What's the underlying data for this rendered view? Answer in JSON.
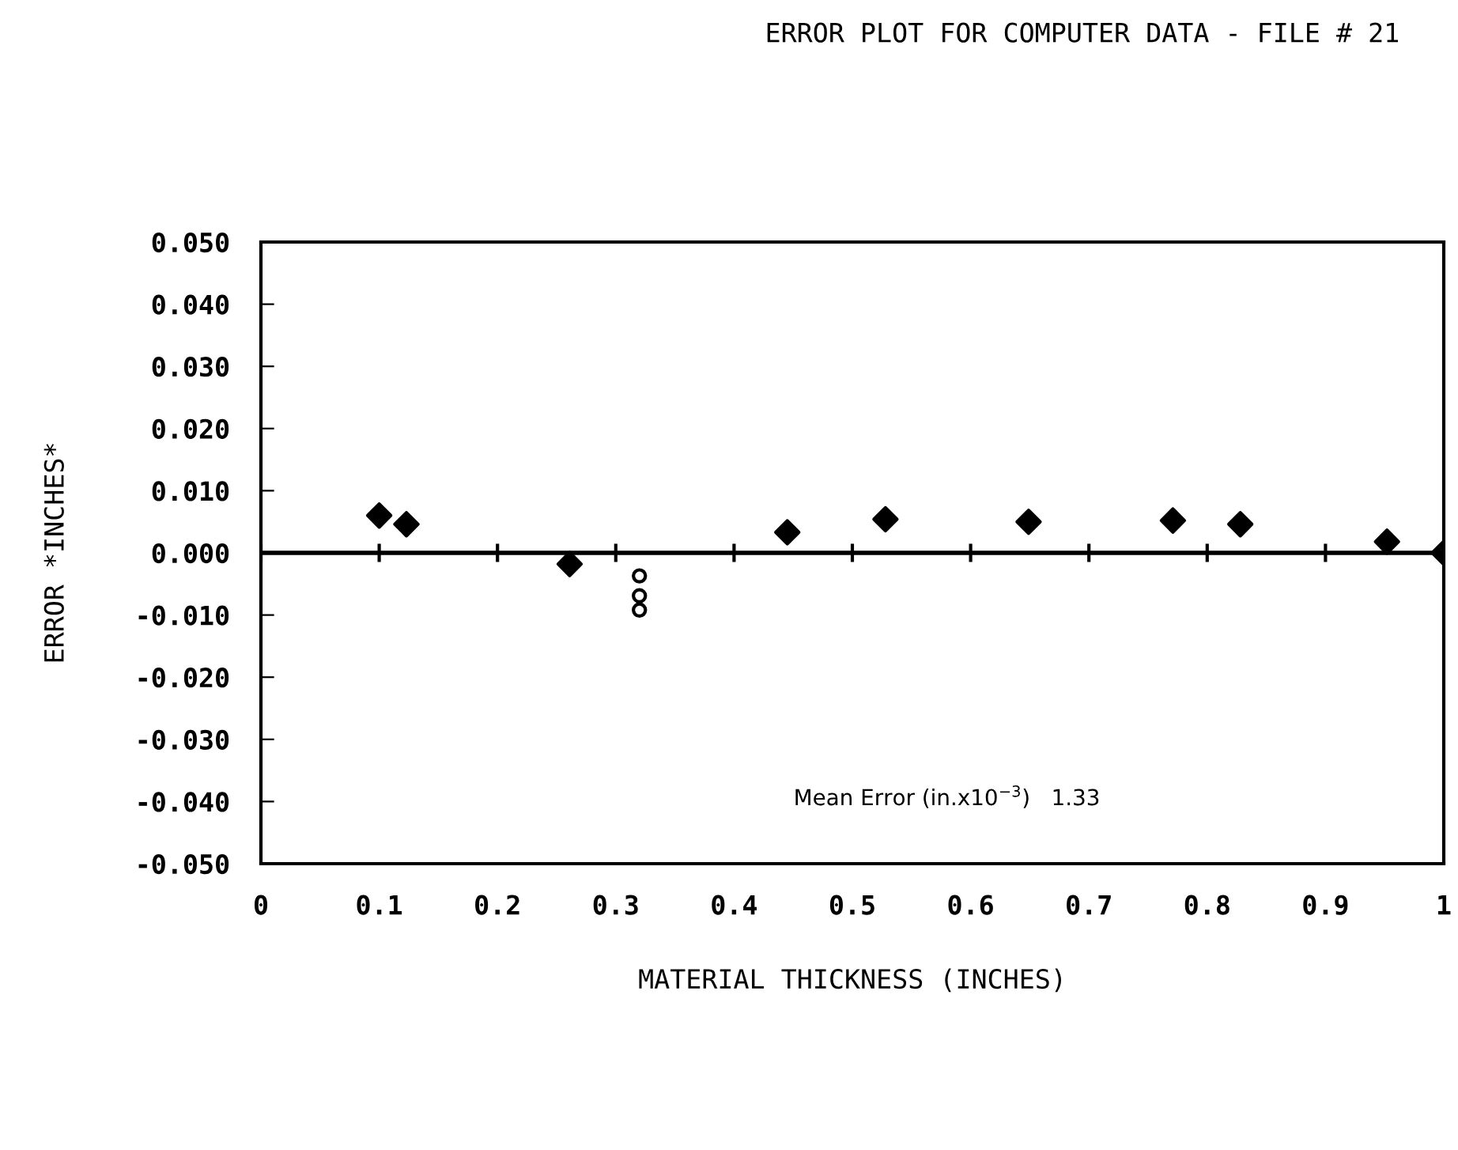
{
  "chart_data": {
    "type": "scatter",
    "title": "ERROR PLOT FOR COMPUTER DATA - FILE # 21",
    "xlabel": "MATERIAL THICKNESS (INCHES)",
    "ylabel": "ERROR *INCHES*",
    "series": [
      {
        "color": "#000000",
        "marker": "diamond",
        "x": [
          0.1,
          0.123,
          0.261,
          0.445,
          0.528,
          0.649,
          0.771,
          0.828,
          0.952,
          1.0
        ],
        "values": [
          0.006,
          0.0046,
          -0.0018,
          0.0033,
          0.0054,
          0.005,
          0.0052,
          0.0046,
          0.0018,
          0.0
        ]
      },
      {
        "color": "#000000",
        "marker": "circle",
        "x": [
          0.32,
          0.32,
          0.32
        ],
        "values": [
          -0.0037,
          -0.0069,
          -0.0092
        ]
      }
    ],
    "xlim": [
      0,
      1
    ],
    "xticks": [
      0,
      0.1,
      0.2,
      0.3,
      0.4,
      0.5,
      0.6,
      0.7,
      0.8,
      0.9,
      1
    ],
    "ylim": [
      -0.05,
      0.05
    ],
    "yticks": [
      {
        "value": -0.05,
        "label": "-0.050"
      },
      {
        "value": -0.04,
        "label": "-0.040"
      },
      {
        "value": -0.03,
        "label": "-0.030"
      },
      {
        "value": -0.02,
        "label": "-0.020"
      },
      {
        "value": -0.01,
        "label": "-0.010"
      },
      {
        "value": 0,
        "label": "0.000"
      },
      {
        "value": 0.01,
        "label": "0.010"
      },
      {
        "value": 0.02,
        "label": "0.020"
      },
      {
        "value": 0.03,
        "label": "0.030"
      },
      {
        "value": 0.04,
        "label": "0.040"
      },
      {
        "value": 0.05,
        "label": "0.050"
      }
    ],
    "ref_lines": [
      {
        "axis": "y",
        "value": 0,
        "color": "#000000"
      }
    ],
    "annotations": [
      "Mean Error (in.x10$^{−3}$)   1.33"
    ]
  }
}
